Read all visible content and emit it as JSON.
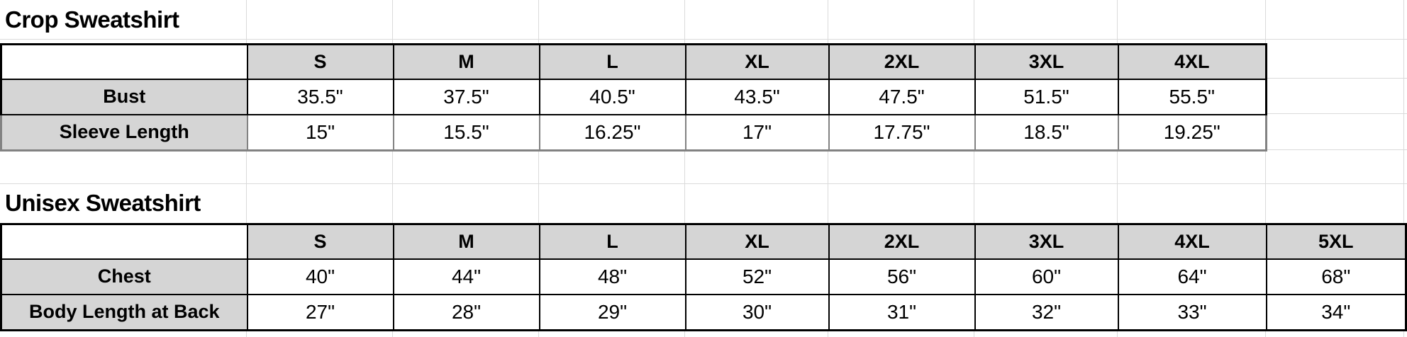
{
  "colors": {
    "header_fill": "#d5d5d5",
    "table_border": "#000000",
    "muted_border": "#828282",
    "gridline": "#dadada",
    "text": "#000000",
    "background": "#ffffff"
  },
  "tables": [
    {
      "title": "Crop Sweatshirt",
      "sizes": [
        "S",
        "M",
        "L",
        "XL",
        "2XL",
        "3XL",
        "4XL"
      ],
      "rows": [
        {
          "label": "Bust",
          "values": [
            "35.5\"",
            "37.5\"",
            "40.5\"",
            "43.5\"",
            "47.5\"",
            "51.5\"",
            "55.5\""
          ]
        },
        {
          "label": "Sleeve Length",
          "values": [
            "15\"",
            "15.5\"",
            "16.25\"",
            "17\"",
            "17.75\"",
            "18.5\"",
            "19.25\""
          ]
        }
      ]
    },
    {
      "title": "Unisex Sweatshirt",
      "sizes": [
        "S",
        "M",
        "L",
        "XL",
        "2XL",
        "3XL",
        "4XL",
        "5XL"
      ],
      "rows": [
        {
          "label": "Chest",
          "values": [
            "40\"",
            "44\"",
            "48\"",
            "52\"",
            "56\"",
            "60\"",
            "64\"",
            "68\""
          ]
        },
        {
          "label": "Body Length at Back",
          "values": [
            "27\"",
            "28\"",
            "29\"",
            "30\"",
            "31\"",
            "32\"",
            "33\"",
            "34\""
          ]
        }
      ]
    }
  ]
}
